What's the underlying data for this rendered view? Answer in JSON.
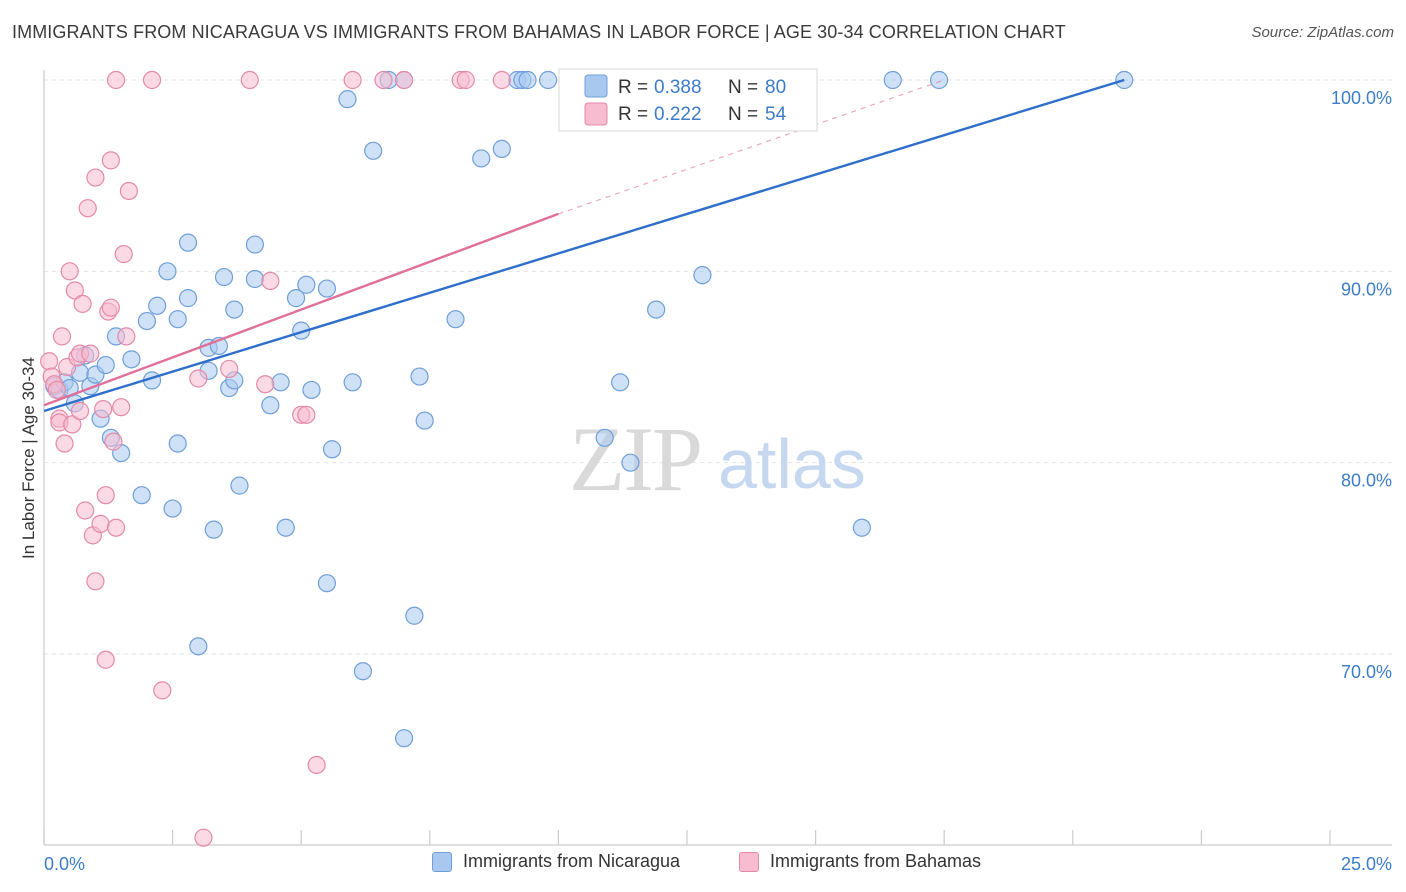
{
  "chart_data": {
    "type": "scatter",
    "title": "IMMIGRANTS FROM NICARAGUA VS IMMIGRANTS FROM BAHAMAS IN LABOR FORCE | AGE 30-34 CORRELATION CHART",
    "source": "Source: ZipAtlas.com",
    "xlabel": "",
    "ylabel": "In Labor Force | Age 30-34",
    "xlim": [
      0,
      25
    ],
    "ylim": [
      60,
      100
    ],
    "x_tick_labels": [
      "0.0%",
      "25.0%"
    ],
    "y_tick_labels": [
      "100.0%",
      "90.0%",
      "80.0%",
      "70.0%"
    ],
    "y_ticks": [
      100,
      90,
      80,
      70
    ],
    "grid": true,
    "watermark": {
      "zip": "ZIP",
      "atlas": "atlas"
    },
    "legend": {
      "rows": [
        {
          "r_label": "R = ",
          "r_value": "0.388",
          "n_label": "N = ",
          "n_value": "80"
        },
        {
          "r_label": "R = ",
          "r_value": "0.222",
          "n_label": "N = ",
          "n_value": "54"
        }
      ]
    },
    "series": [
      {
        "name": "Immigrants from Nicaragua",
        "color": "#a8c8f0",
        "edge_color": "#6f9fd8",
        "line_color": "#2f6fcc",
        "r": 0.388,
        "n": 80,
        "trend": {
          "x0": 0.0,
          "y0": 82.7,
          "x1": 21.0,
          "y1": 100.0
        },
        "points": [
          [
            0.2,
            84.0
          ],
          [
            0.3,
            83.8
          ],
          [
            0.4,
            84.2
          ],
          [
            0.5,
            83.9
          ],
          [
            0.6,
            83.1
          ],
          [
            0.7,
            84.7
          ],
          [
            0.8,
            85.6
          ],
          [
            0.9,
            84.0
          ],
          [
            1.0,
            84.6
          ],
          [
            1.1,
            82.3
          ],
          [
            1.2,
            85.1
          ],
          [
            1.3,
            81.3
          ],
          [
            1.4,
            86.6
          ],
          [
            1.5,
            80.5
          ],
          [
            1.7,
            85.4
          ],
          [
            1.9,
            78.3
          ],
          [
            2.0,
            87.4
          ],
          [
            2.1,
            84.3
          ],
          [
            2.2,
            88.2
          ],
          [
            2.4,
            90.0
          ],
          [
            2.5,
            77.6
          ],
          [
            2.6,
            87.5
          ],
          [
            2.6,
            81.0
          ],
          [
            2.8,
            88.6
          ],
          [
            2.8,
            91.5
          ],
          [
            3.0,
            70.4
          ],
          [
            3.2,
            84.8
          ],
          [
            3.2,
            86.0
          ],
          [
            3.3,
            76.5
          ],
          [
            3.4,
            86.1
          ],
          [
            3.5,
            89.7
          ],
          [
            3.6,
            83.9
          ],
          [
            3.7,
            84.3
          ],
          [
            3.7,
            88.0
          ],
          [
            3.8,
            78.8
          ],
          [
            4.1,
            91.4
          ],
          [
            4.1,
            89.6
          ],
          [
            4.4,
            83.0
          ],
          [
            4.6,
            84.2
          ],
          [
            4.7,
            76.6
          ],
          [
            4.9,
            88.6
          ],
          [
            5.0,
            86.9
          ],
          [
            5.1,
            89.3
          ],
          [
            5.2,
            83.8
          ],
          [
            5.5,
            73.7
          ],
          [
            5.5,
            89.1
          ],
          [
            5.6,
            80.7
          ],
          [
            5.9,
            99.0
          ],
          [
            6.0,
            84.2
          ],
          [
            6.2,
            69.1
          ],
          [
            6.4,
            96.3
          ],
          [
            7.0,
            65.6
          ],
          [
            7.2,
            72.0
          ],
          [
            7.3,
            84.5
          ],
          [
            7.4,
            82.2
          ],
          [
            8.0,
            87.5
          ],
          [
            8.5,
            95.9
          ],
          [
            8.9,
            96.4
          ],
          [
            9.2,
            100.0
          ],
          [
            9.3,
            100.0
          ],
          [
            9.4,
            100.0
          ],
          [
            9.8,
            100.0
          ],
          [
            10.4,
            100.0
          ],
          [
            10.5,
            100.0
          ],
          [
            10.9,
            81.3
          ],
          [
            11.2,
            84.2
          ],
          [
            11.2,
            100.0
          ],
          [
            11.4,
            80.0
          ],
          [
            11.8,
            100.0
          ],
          [
            12.4,
            100.0
          ],
          [
            12.8,
            89.8
          ],
          [
            14.7,
            100.0
          ],
          [
            15.9,
            76.6
          ],
          [
            16.5,
            100.0
          ],
          [
            17.4,
            100.0
          ],
          [
            21.0,
            100.0
          ],
          [
            11.9,
            88.0
          ],
          [
            7.0,
            100.0
          ],
          [
            6.7,
            100.0
          ],
          [
            10.8,
            98.6
          ]
        ]
      },
      {
        "name": "Immigrants from Bahamas",
        "color": "#f7bcd0",
        "edge_color": "#e48aa9",
        "line_color": "#e0709a",
        "r": 0.222,
        "n": 54,
        "trend": {
          "x0": 0.0,
          "y0": 83.0,
          "x1": 10.0,
          "y1": 93.0
        },
        "trend_ext": {
          "x0": 10.0,
          "y0": 93.0,
          "x1": 17.5,
          "y1": 100.0
        },
        "points": [
          [
            0.1,
            85.3
          ],
          [
            0.15,
            84.5
          ],
          [
            0.2,
            84.1
          ],
          [
            0.25,
            83.8
          ],
          [
            0.3,
            82.3
          ],
          [
            0.3,
            82.1
          ],
          [
            0.35,
            86.6
          ],
          [
            0.4,
            81.0
          ],
          [
            0.45,
            85.0
          ],
          [
            0.5,
            90.0
          ],
          [
            0.55,
            82.0
          ],
          [
            0.6,
            89.0
          ],
          [
            0.65,
            85.5
          ],
          [
            0.7,
            85.7
          ],
          [
            0.7,
            82.7
          ],
          [
            0.75,
            88.3
          ],
          [
            0.8,
            77.5
          ],
          [
            0.85,
            93.3
          ],
          [
            0.9,
            85.7
          ],
          [
            0.95,
            76.2
          ],
          [
            1.0,
            73.8
          ],
          [
            1.0,
            94.9
          ],
          [
            1.1,
            76.8
          ],
          [
            1.15,
            82.8
          ],
          [
            1.2,
            69.7
          ],
          [
            1.2,
            78.3
          ],
          [
            1.25,
            87.9
          ],
          [
            1.3,
            88.1
          ],
          [
            1.3,
            95.8
          ],
          [
            1.35,
            81.1
          ],
          [
            1.4,
            76.6
          ],
          [
            1.5,
            82.9
          ],
          [
            1.55,
            90.9
          ],
          [
            1.6,
            86.6
          ],
          [
            1.65,
            94.2
          ],
          [
            1.4,
            100.0
          ],
          [
            2.1,
            100.0
          ],
          [
            2.3,
            68.1
          ],
          [
            3.0,
            84.4
          ],
          [
            3.1,
            60.4
          ],
          [
            3.6,
            84.9
          ],
          [
            4.0,
            100.0
          ],
          [
            4.3,
            84.1
          ],
          [
            4.4,
            89.5
          ],
          [
            5.0,
            82.5
          ],
          [
            5.1,
            82.5
          ],
          [
            5.3,
            64.2
          ],
          [
            6.0,
            100.0
          ],
          [
            6.6,
            100.0
          ],
          [
            7.0,
            100.0
          ],
          [
            8.1,
            100.0
          ],
          [
            8.2,
            100.0
          ],
          [
            8.9,
            100.0
          ],
          [
            11.0,
            100.0
          ]
        ]
      }
    ]
  }
}
